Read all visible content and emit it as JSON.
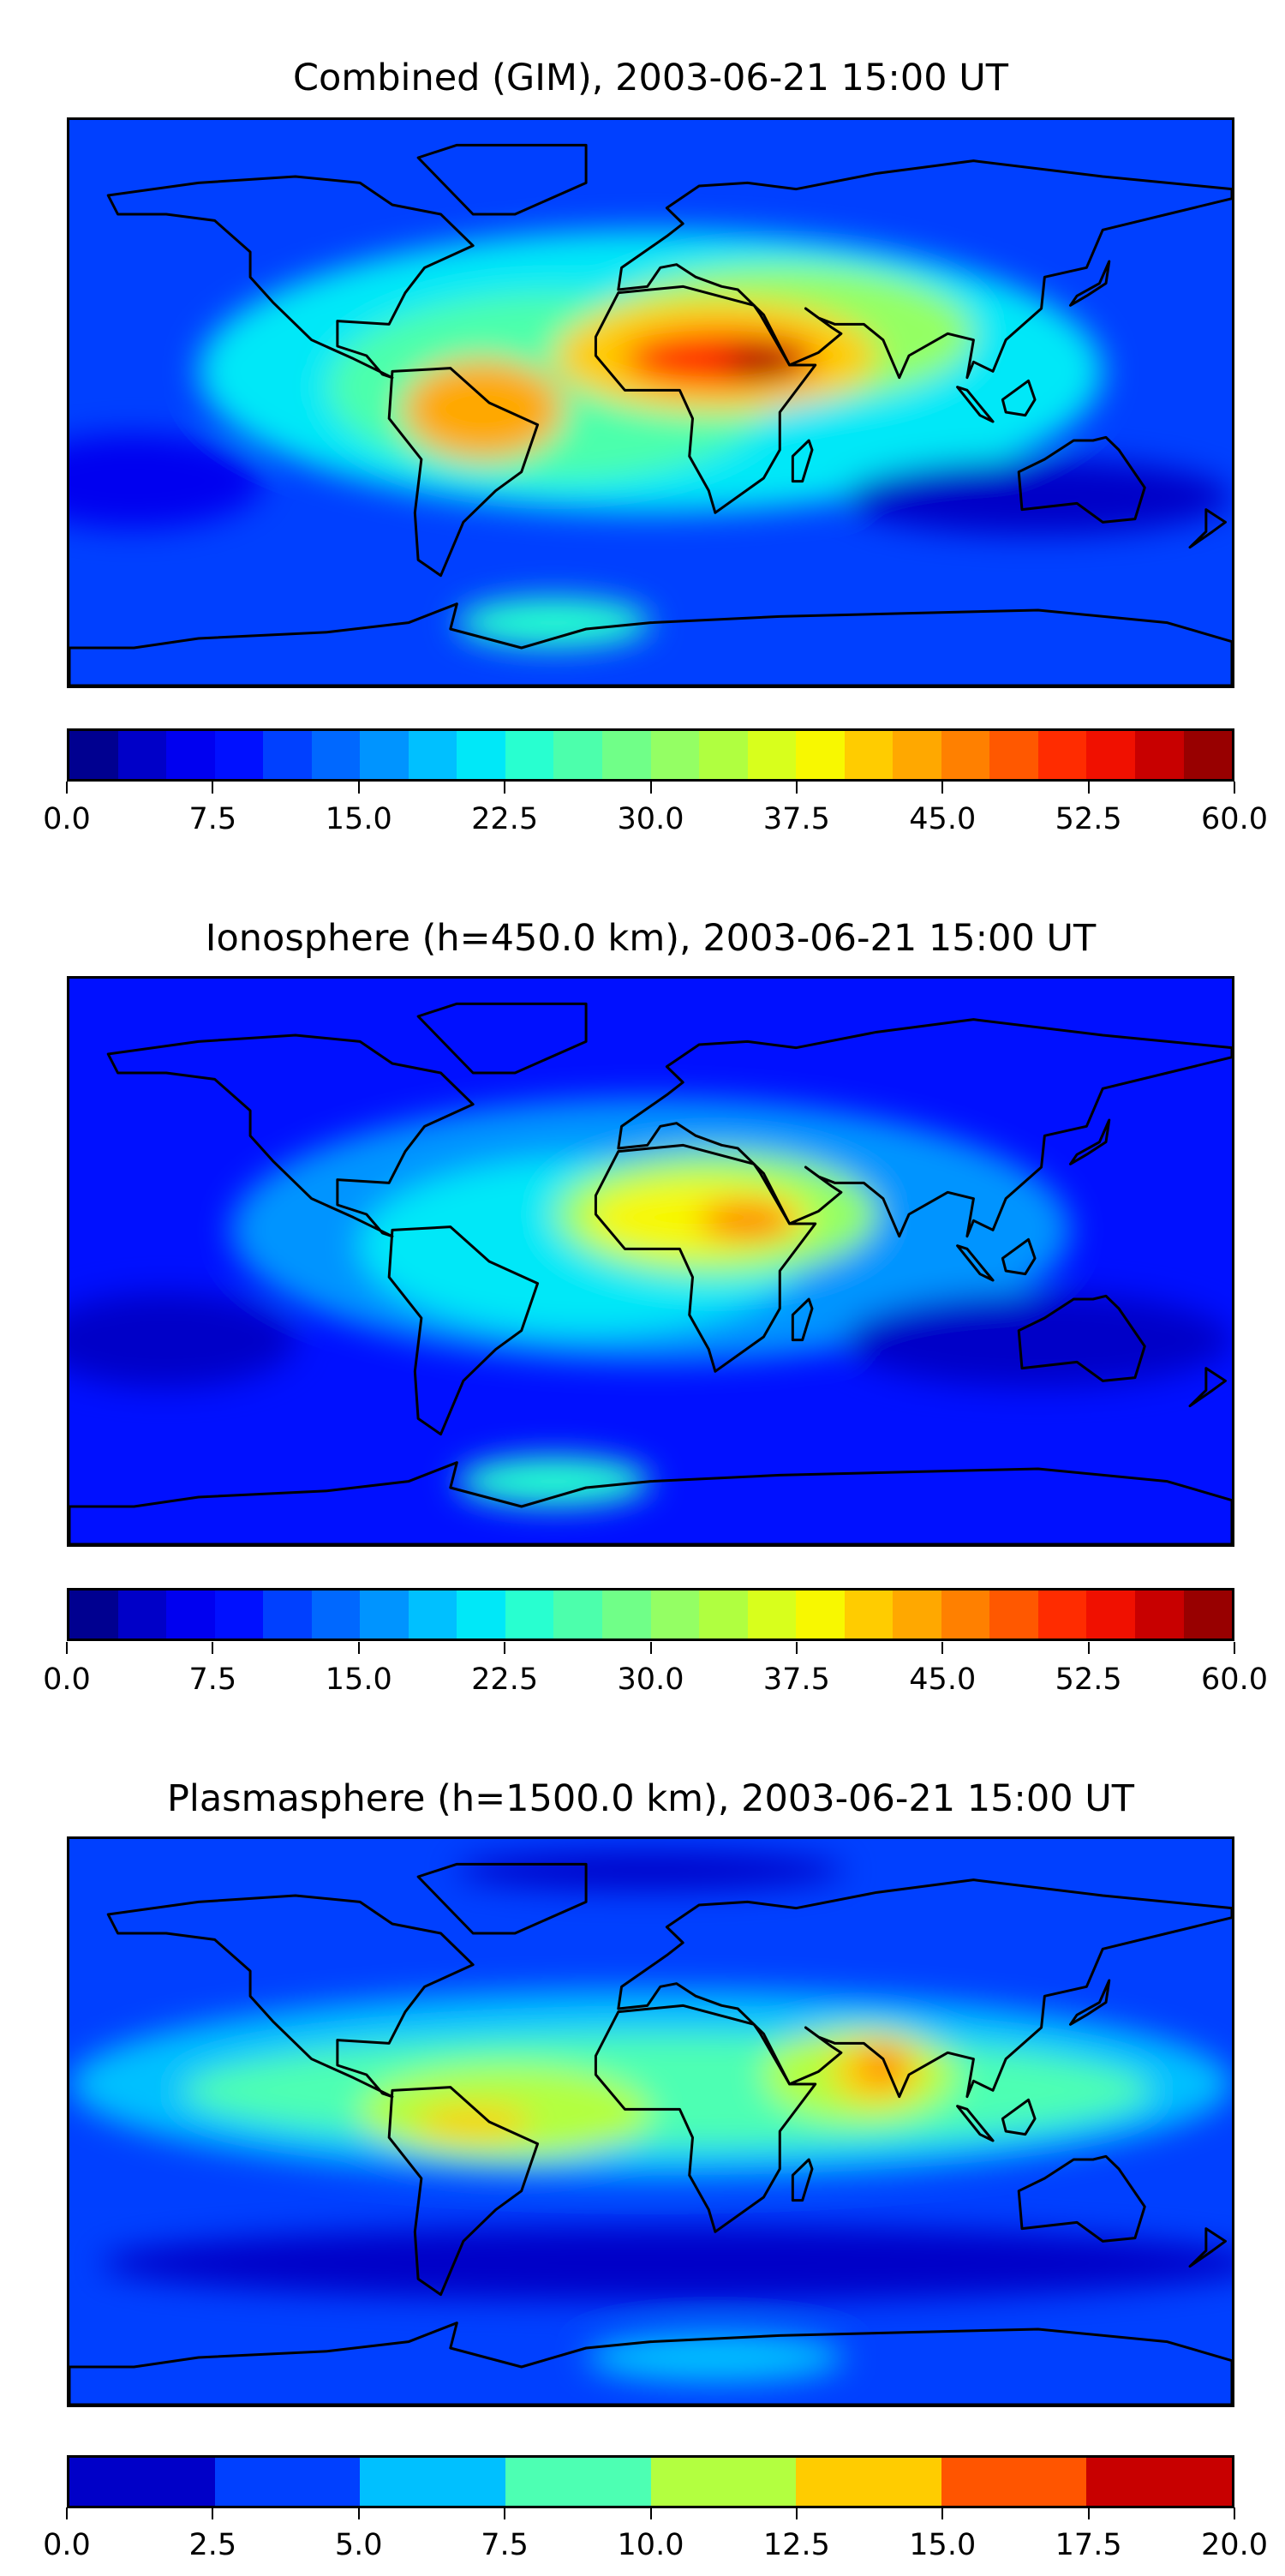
{
  "chart_data": [
    {
      "type": "heatmap",
      "title": "Combined (GIM), 2003-06-21 15:00 UT",
      "projection": "equirectangular",
      "lon_range": [
        -180,
        180
      ],
      "lat_range": [
        -90,
        90
      ],
      "colorbar": {
        "range": [
          0,
          60
        ],
        "levels": 24,
        "ticks": [
          "0.0",
          "7.5",
          "15.0",
          "22.5",
          "30.0",
          "37.5",
          "45.0",
          "52.5",
          "60.0"
        ],
        "colors": [
          "#000090",
          "#0000c8",
          "#0000f0",
          "#0010ff",
          "#0040ff",
          "#0068ff",
          "#0094ff",
          "#00c0ff",
          "#00e8f8",
          "#28ffd0",
          "#4cffac",
          "#70ff88",
          "#94ff64",
          "#b0ff40",
          "#d8ff1c",
          "#f8f800",
          "#ffcc00",
          "#ffa800",
          "#ff8000",
          "#ff5800",
          "#ff2c00",
          "#f01000",
          "#c80000",
          "#980000"
        ]
      },
      "background_value": 10,
      "features": [
        {
          "lon": 0,
          "lat": 10,
          "rx": 140,
          "ry": 45,
          "value": 20
        },
        {
          "lon": -30,
          "lat": 5,
          "rx": 70,
          "ry": 30,
          "value": 27
        },
        {
          "lon": 40,
          "lat": 22,
          "rx": 60,
          "ry": 22,
          "value": 30
        },
        {
          "lon": 20,
          "lat": 15,
          "rx": 50,
          "ry": 18,
          "value": 40
        },
        {
          "lon": -52,
          "lat": -2,
          "rx": 25,
          "ry": 16,
          "value": 44
        },
        {
          "lon": 22,
          "lat": 14,
          "rx": 30,
          "ry": 9,
          "value": 52
        },
        {
          "lon": 35,
          "lat": 13,
          "rx": 12,
          "ry": 5,
          "value": 58
        },
        {
          "lon": 120,
          "lat": -30,
          "rx": 60,
          "ry": 12,
          "value": 3
        },
        {
          "lon": -160,
          "lat": -25,
          "rx": 40,
          "ry": 15,
          "value": 5
        },
        {
          "lon": -30,
          "lat": -70,
          "rx": 30,
          "ry": 8,
          "value": 24
        }
      ]
    },
    {
      "type": "heatmap",
      "title": "Ionosphere  (h=450.0 km), 2003-06-21 15:00 UT",
      "projection": "equirectangular",
      "lon_range": [
        -180,
        180
      ],
      "lat_range": [
        -90,
        90
      ],
      "colorbar": {
        "range": [
          0,
          60
        ],
        "levels": 24,
        "ticks": [
          "0.0",
          "7.5",
          "15.0",
          "22.5",
          "30.0",
          "37.5",
          "45.0",
          "52.5",
          "60.0"
        ],
        "colors": [
          "#000090",
          "#0000c8",
          "#0000f0",
          "#0010ff",
          "#0040ff",
          "#0068ff",
          "#0094ff",
          "#00c0ff",
          "#00e8f8",
          "#28ffd0",
          "#4cffac",
          "#70ff88",
          "#94ff64",
          "#b0ff40",
          "#d8ff1c",
          "#f8f800",
          "#ffcc00",
          "#ffa800",
          "#ff8000",
          "#ff5800",
          "#ff2c00",
          "#f01000",
          "#c80000",
          "#980000"
        ]
      },
      "background_value": 9,
      "features": [
        {
          "lon": 0,
          "lat": 10,
          "rx": 130,
          "ry": 42,
          "value": 16
        },
        {
          "lon": -20,
          "lat": 5,
          "rx": 70,
          "ry": 28,
          "value": 22
        },
        {
          "lon": 20,
          "lat": 15,
          "rx": 50,
          "ry": 20,
          "value": 30
        },
        {
          "lon": 15,
          "lat": 14,
          "rx": 35,
          "ry": 12,
          "value": 38
        },
        {
          "lon": 30,
          "lat": 13,
          "rx": 15,
          "ry": 6,
          "value": 45
        },
        {
          "lon": 120,
          "lat": -25,
          "rx": 60,
          "ry": 15,
          "value": 3
        },
        {
          "lon": -150,
          "lat": -25,
          "rx": 40,
          "ry": 15,
          "value": 3
        },
        {
          "lon": -30,
          "lat": -70,
          "rx": 30,
          "ry": 8,
          "value": 24
        }
      ]
    },
    {
      "type": "heatmap",
      "title": "Plasmasphere (h=1500.0 km), 2003-06-21 15:00 UT",
      "projection": "equirectangular",
      "lon_range": [
        -180,
        180
      ],
      "lat_range": [
        -90,
        90
      ],
      "colorbar": {
        "range": [
          0,
          20
        ],
        "levels": 8,
        "ticks": [
          "0.0",
          "2.5",
          "5.0",
          "7.5",
          "10.0",
          "12.5",
          "15.0",
          "17.5",
          "20.0"
        ],
        "colors": [
          "#0000c8",
          "#0040ff",
          "#00c0ff",
          "#4dffb3",
          "#b3ff40",
          "#ffcc00",
          "#ff5500",
          "#c80000"
        ]
      },
      "background_value": 3,
      "features": [
        {
          "lon": 0,
          "lat": 12,
          "rx": 180,
          "ry": 30,
          "value": 6
        },
        {
          "lon": 5,
          "lat": 10,
          "rx": 150,
          "ry": 18,
          "value": 9
        },
        {
          "lon": -45,
          "lat": 3,
          "rx": 45,
          "ry": 15,
          "value": 11
        },
        {
          "lon": 65,
          "lat": 15,
          "rx": 30,
          "ry": 15,
          "value": 11
        },
        {
          "lon": -55,
          "lat": 0,
          "rx": 18,
          "ry": 5,
          "value": 13
        },
        {
          "lon": 70,
          "lat": 16,
          "rx": 14,
          "ry": 10,
          "value": 13
        },
        {
          "lon": 72,
          "lat": 18,
          "rx": 5,
          "ry": 5,
          "value": 16
        },
        {
          "lon": 10,
          "lat": -45,
          "rx": 180,
          "ry": 12,
          "value": 1
        },
        {
          "lon": 20,
          "lat": -75,
          "rx": 40,
          "ry": 8,
          "value": 6
        },
        {
          "lon": 0,
          "lat": 80,
          "rx": 60,
          "ry": 6,
          "value": 1
        }
      ]
    }
  ]
}
